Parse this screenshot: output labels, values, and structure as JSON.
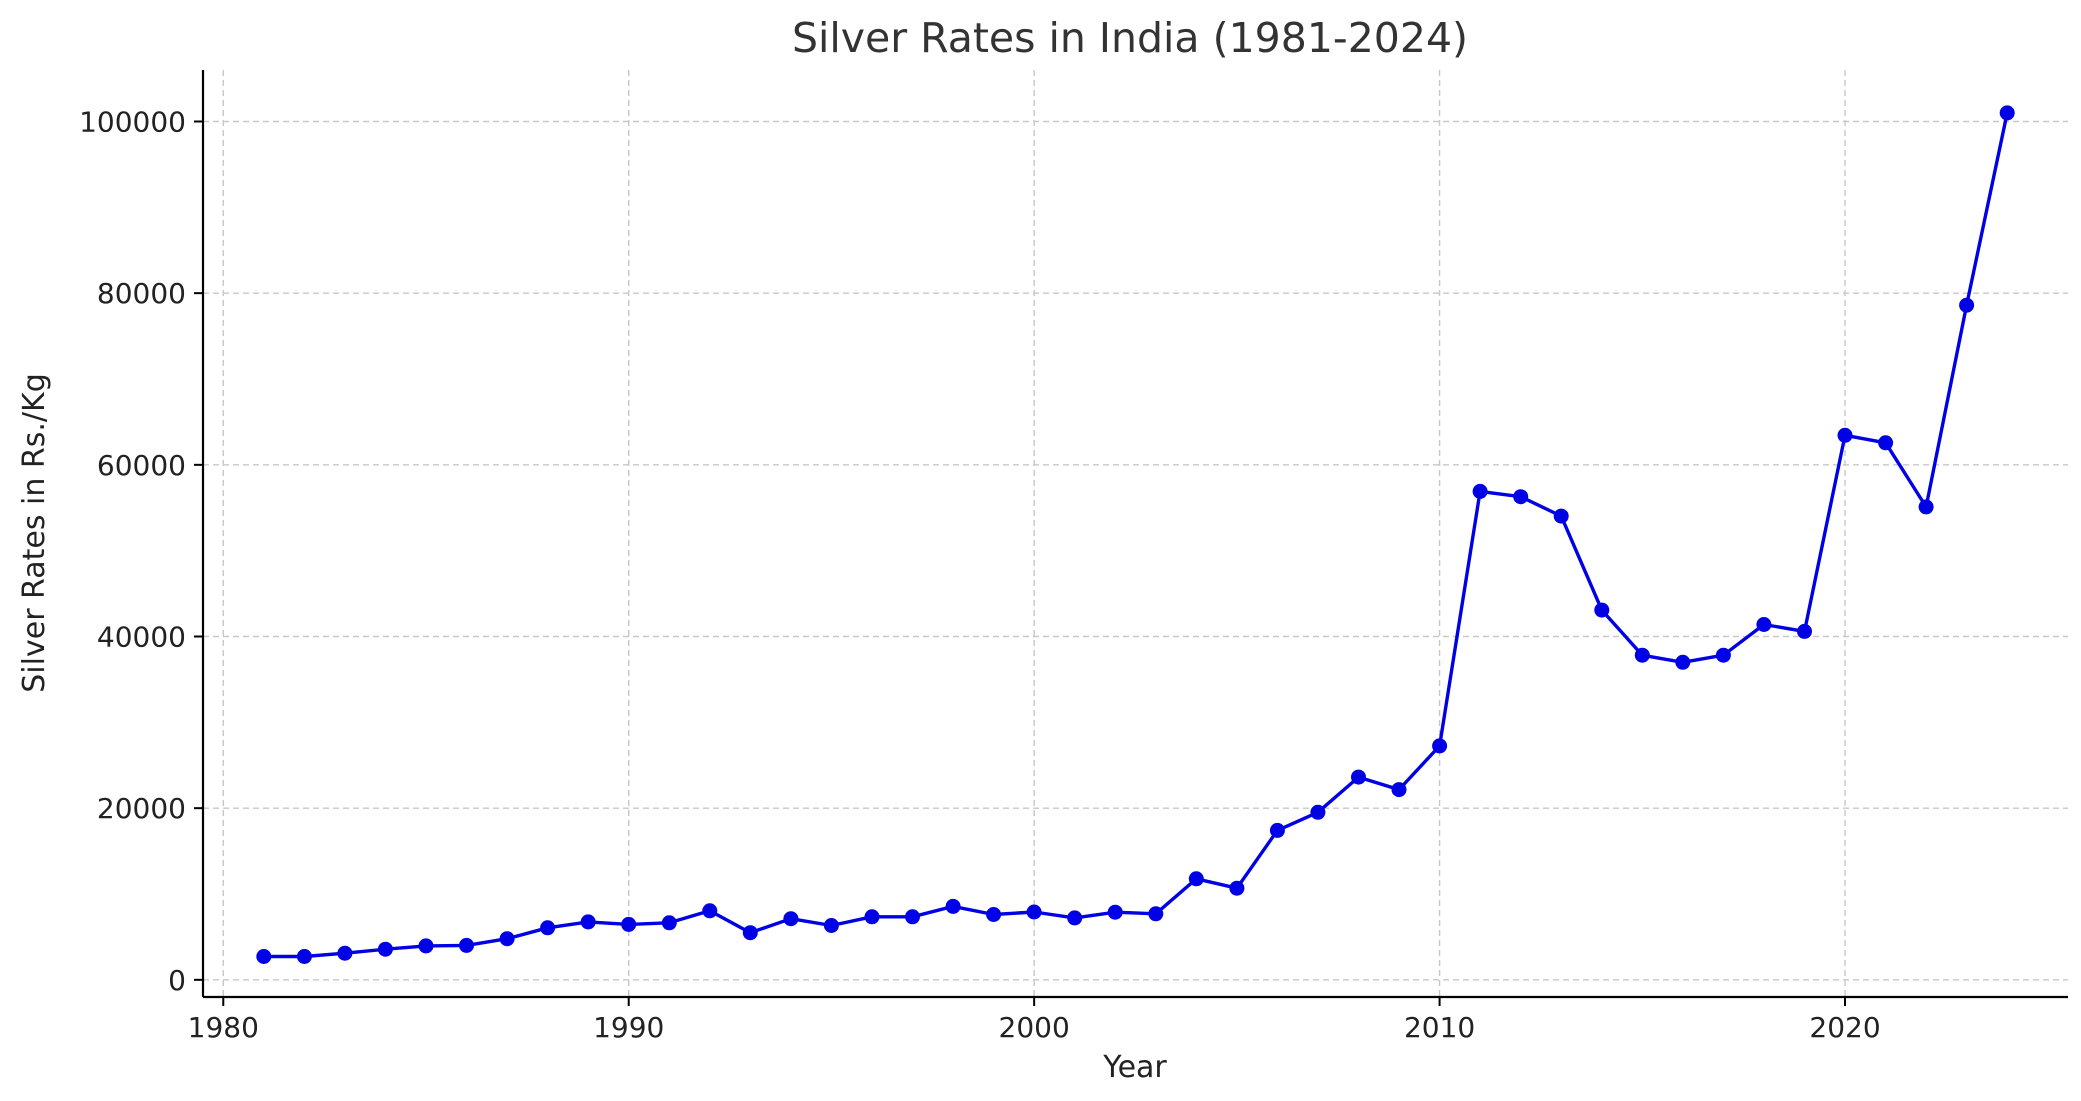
{
  "chart_data": {
    "type": "line",
    "title": "Silver Rates in India (1981-2024)",
    "xlabel": "Year",
    "ylabel": "Silver Rates in Rs./Kg",
    "xlim": [
      1979.5,
      2025.5
    ],
    "ylim": [
      -2000,
      106000
    ],
    "xticks": [
      1980,
      1990,
      2000,
      2010,
      2020
    ],
    "yticks": [
      0,
      20000,
      40000,
      60000,
      80000,
      100000
    ],
    "grid": true,
    "color": "#0000e6",
    "x": [
      1981,
      1982,
      1983,
      1984,
      1985,
      1986,
      1987,
      1988,
      1989,
      1990,
      1991,
      1992,
      1993,
      1994,
      1995,
      1996,
      1997,
      1998,
      1999,
      2000,
      2001,
      2002,
      2003,
      2004,
      2005,
      2006,
      2007,
      2008,
      2009,
      2010,
      2011,
      2012,
      2013,
      2014,
      2015,
      2016,
      2017,
      2018,
      2019,
      2020,
      2021,
      2022,
      2023,
      2024
    ],
    "y": [
      2715,
      2720,
      3105,
      3570,
      3955,
      4015,
      4794,
      6066,
      6755,
      6463,
      6646,
      8040,
      5489,
      7124,
      6335,
      7346,
      7345,
      8560,
      7615,
      7900,
      7215,
      7875,
      7695,
      11770,
      10675,
      17405,
      19520,
      23625,
      22165,
      27255,
      56900,
      56290,
      54030,
      43070,
      37825,
      36990,
      37825,
      41400,
      40600,
      63435,
      62572,
      55100,
      78600,
      101000
    ]
  }
}
